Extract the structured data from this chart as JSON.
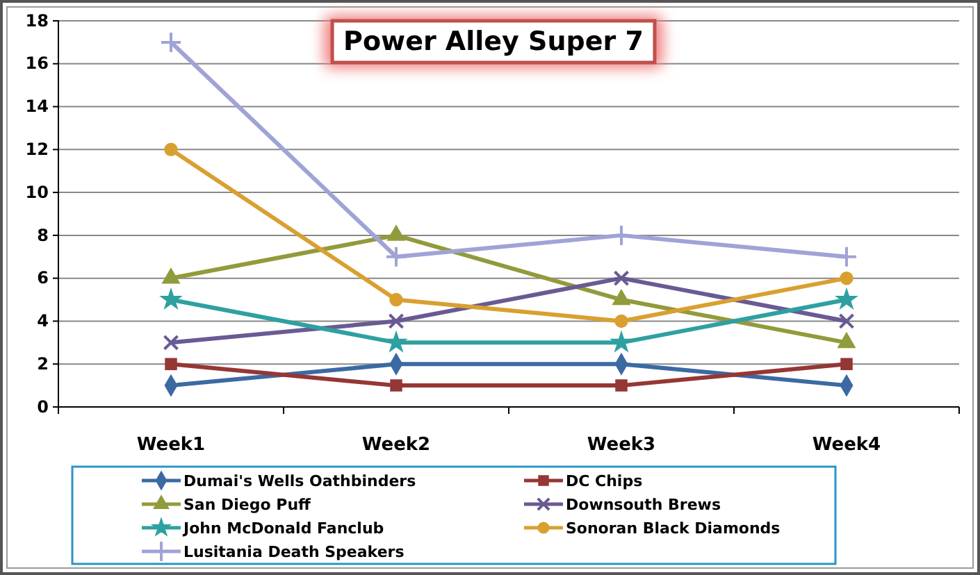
{
  "chart_data": {
    "type": "line",
    "title": "Power Alley Super 7",
    "categories": [
      "Week1",
      "Week2",
      "Week3",
      "Week4"
    ],
    "ylim": [
      0,
      18
    ],
    "yticks": [
      0,
      2,
      4,
      6,
      8,
      10,
      12,
      14,
      16,
      18
    ],
    "grid": "y",
    "legend": "bottom",
    "line_style": "solid",
    "series": [
      {
        "name": "Dumai's Wells Oathbinders",
        "color": "#3b6aa3",
        "marker": "diamond",
        "values": [
          1,
          2,
          2,
          1
        ]
      },
      {
        "name": "DC Chips",
        "color": "#953735",
        "marker": "square",
        "values": [
          2,
          1,
          1,
          2
        ]
      },
      {
        "name": "San Diego Puff",
        "color": "#929b3b",
        "marker": "triangle",
        "values": [
          6,
          8,
          5,
          3
        ]
      },
      {
        "name": "Downsouth Brews",
        "color": "#6a5a93",
        "marker": "cross",
        "values": [
          3,
          4,
          6,
          4
        ]
      },
      {
        "name": "John McDonald  Fanclub",
        "color": "#2fa0a0",
        "marker": "star",
        "values": [
          5,
          3,
          3,
          5
        ]
      },
      {
        "name": "Sonoran Black  Diamonds",
        "color": "#d9a030",
        "marker": "circle",
        "values": [
          12,
          5,
          4,
          6
        ]
      },
      {
        "name": "Lusitania Death Speakers",
        "color": "#a0a3d6",
        "marker": "plus",
        "values": [
          17,
          7,
          8,
          7
        ]
      }
    ]
  }
}
